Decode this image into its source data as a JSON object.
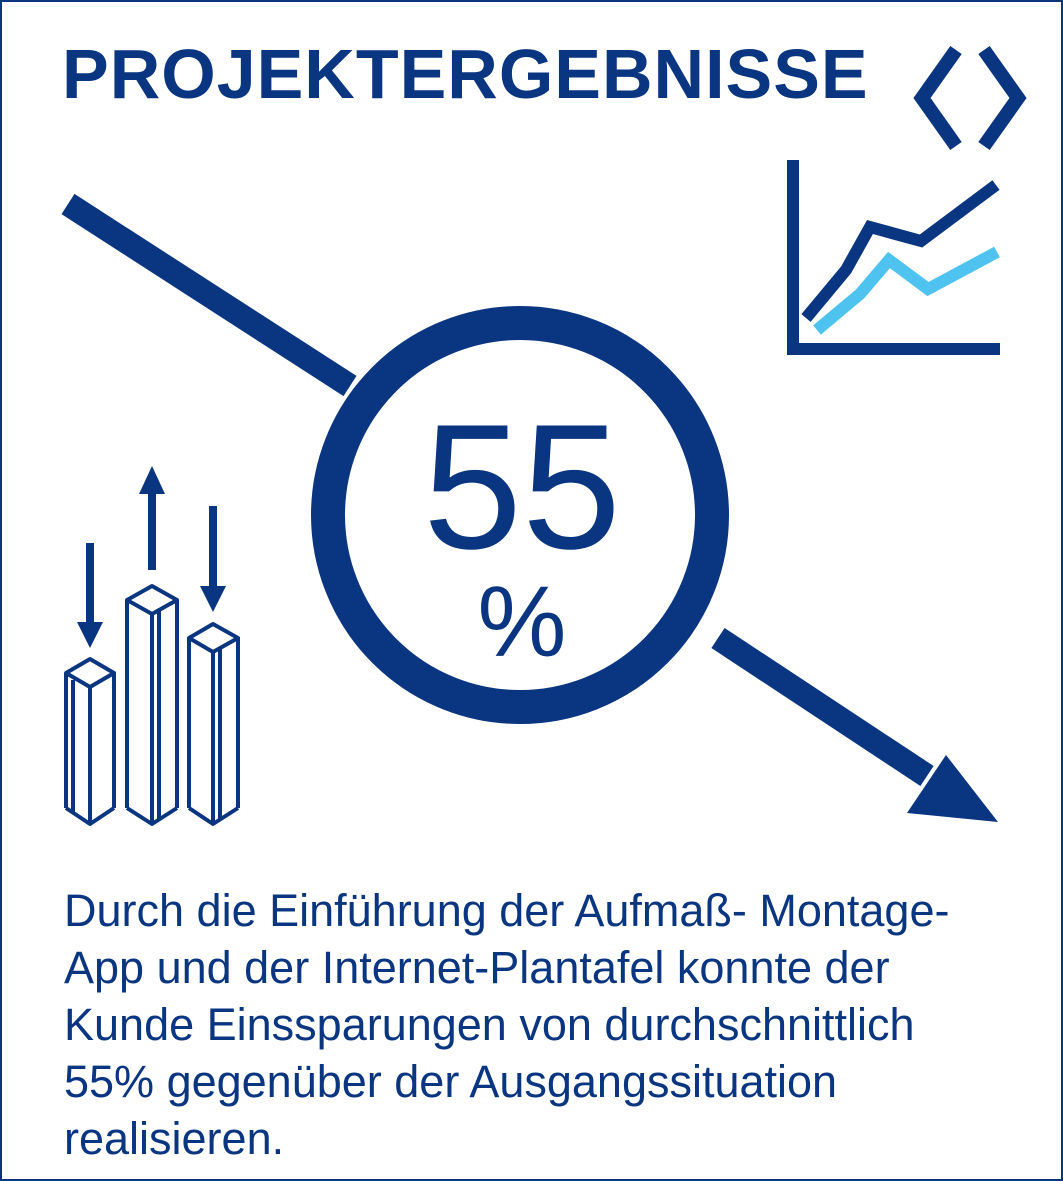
{
  "header": {
    "title": "PROJEKTERGEBNISSE"
  },
  "icons": {
    "logo": "brand-diamond-logo",
    "trend": "line-chart-icon",
    "bars": "bar-chart-arrows-icon",
    "arrow": "downward-trend-arrow-icon"
  },
  "metric": {
    "value": "55",
    "unit": "%"
  },
  "description": "Durch die Einführung der Aufmaß- Montage-\nApp und der Internet-Plantafel konnte der\nKunde Einssparungen von durchschnittlich\n55% gegenüber der Ausgangssituation\nrealisieren.",
  "colors": {
    "primary": "#0a3580",
    "accent": "#4fc3ef",
    "background": "#ffffff"
  }
}
